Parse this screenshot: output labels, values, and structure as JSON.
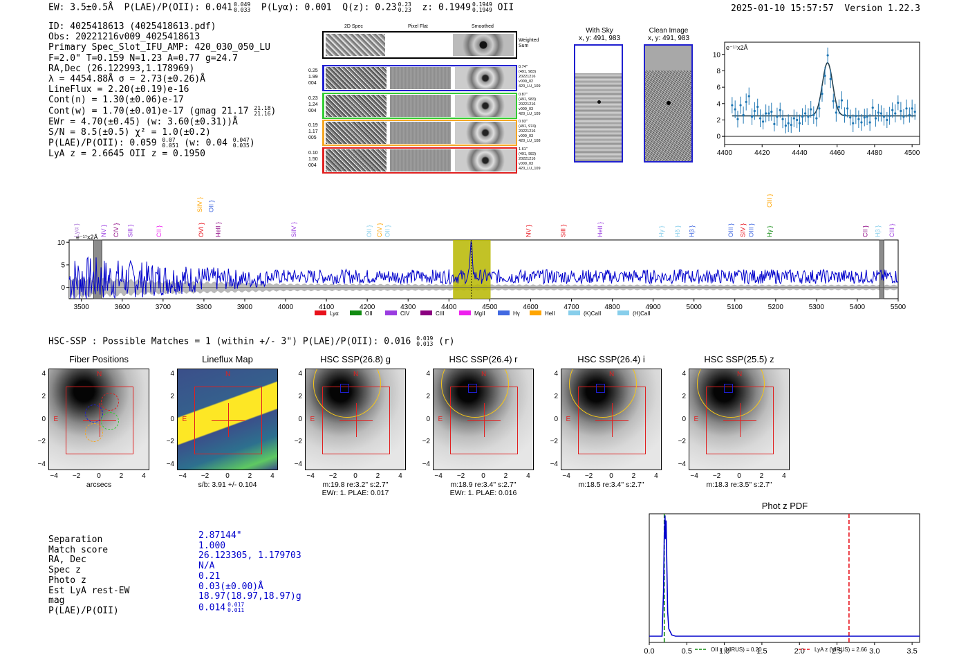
{
  "header": {
    "ew_label": "EW: 3.5±0.5Å",
    "plae_label": "P(LAE)/P(OII): 0.041",
    "plae_hi": "0.049",
    "plae_lo": "0.033",
    "plya_label": "P(Lyα): 0.001",
    "qz_label": "Q(z): 0.23",
    "qz_hi": "0.23",
    "qz_lo": "0.23",
    "z_label": "z: 0.1949",
    "z_hi": "0.1949",
    "z_lo": "0.1949",
    "line_name": "OII",
    "timestamp": "2025-01-10 15:57:57",
    "version": "Version 1.22.3"
  },
  "info": {
    "id": "ID: 4025418613 (4025418613.pdf)",
    "obs": "Obs: 20221216v009_4025418613",
    "primary": "Primary Spec_Slot_IFU_AMP: 420_030_050_LU",
    "fparams": "F=2.0\"  T=0.159  N=1.23  A=0.77  g=24.7",
    "radec": "RA,Dec (26.122993,1.178969)",
    "lambda_sigma": "λ = 4454.88Å  σ = 2.73(±0.26)Å",
    "lineflux": "LineFlux = 2.20(±0.19)e-16",
    "contn": "Cont(n) = 1.30(±0.06)e-17",
    "contw": "Cont(w) = 1.70(±0.01)e-17 (gmag 21.17",
    "contw_hi": "21.18",
    "contw_lo": "21.16",
    "contw_end": ")",
    "ewr": "EWr = 4.70(±0.45) (w: 3.60(±0.31))Å",
    "sn": "S/N = 8.5(±0.5)  χ² = 1.0(±0.2)",
    "plae": "P(LAE)/P(OII): 0.059",
    "plae_hi": "0.07",
    "plae_lo": "0.051",
    "plae_w": "(w: 0.04",
    "plae_w_hi": "0.047",
    "plae_w_lo": "0.035",
    "plae_w_end": ")",
    "lya_oii": "LyA z = 2.6645  OII z = 0.1950"
  },
  "cutouts": {
    "col_2d": "2D Spec",
    "col_flat": "Pixel Flat",
    "col_smooth": "Smoothed",
    "weighted_sum": "Weighted Sum",
    "rows": [
      {
        "left": [
          "0.25",
          "1.99",
          "004"
        ],
        "right": [
          "0.74\"",
          "(491, 983)",
          "20221216",
          "v009_02",
          "420_LU_109"
        ],
        "color": "#1f1fd0"
      },
      {
        "left": [
          "0.23",
          "1.24",
          "004"
        ],
        "right": [
          "0.87\"",
          "(491, 983)",
          "20221216",
          "v009_03",
          "420_LU_109"
        ],
        "color": "#33cc33"
      },
      {
        "left": [
          "0.19",
          "1.17",
          "005"
        ],
        "right": [
          "0.93\"",
          "(491, 974)",
          "20221216",
          "v009_03",
          "420_LU_108"
        ],
        "color": "#f5a623"
      },
      {
        "left": [
          "0.10",
          "1.50",
          "004"
        ],
        "right": [
          "1.61\"",
          "(491, 983)",
          "20221216",
          "v009_03",
          "420_LU_109"
        ],
        "color": "#e02020"
      }
    ]
  },
  "sky_panel": {
    "title": "With Sky",
    "coords": "x, y: 491, 983"
  },
  "clean_panel": {
    "title": "Clean Image",
    "coords": "x, y: 491, 983"
  },
  "hsc_header": {
    "text": "HSC-SSP : Possible Matches = 1 (within +/- 3\")  P(LAE)/P(OII): 0.016",
    "hi": "0.019",
    "lo": "0.013",
    "end": "(r)"
  },
  "thumbnails": [
    {
      "title": "Fiber Positions",
      "caption1": "arcsecs",
      "caption2": ""
    },
    {
      "title": "Lineflux Map",
      "caption1": "s/b: 3.91 +/- 0.104",
      "caption2": ""
    },
    {
      "title": "HSC SSP(26.8) g",
      "caption1": "m:19.8  re:3.2\"  s:2.7\"",
      "caption2": "EWr: 1. PLAE: 0.017"
    },
    {
      "title": "HSC SSP(26.4) r",
      "caption1": "m:18.9  re:3.4\"  s:2.7\"",
      "caption2": "EWr: 1. PLAE: 0.016"
    },
    {
      "title": "HSC SSP(26.4) i",
      "caption1": "m:18.5  re:3.4\"  s:2.7\"",
      "caption2": ""
    },
    {
      "title": "HSC SSP(25.5) z",
      "caption1": "m:18.3  re:3.5\"  s:2.7\"",
      "caption2": ""
    }
  ],
  "thumb_labels": {
    "north": "N",
    "east": "E"
  },
  "match_table": {
    "labels": [
      "Separation",
      "Match score",
      "RA, Dec",
      "Spec z",
      "Photo z",
      "Est LyA rest-EW",
      "mag",
      "P(LAE)/P(OII)"
    ],
    "values": [
      "2.87144\"",
      "1.000",
      "26.123305, 1.179703",
      "N/A",
      "0.21",
      "0.03(±0.00)Å",
      "18.97(18.97,18.97)g",
      "0.014"
    ],
    "plae_hi": "0.017",
    "plae_lo": "0.011"
  },
  "chart_data": [
    {
      "id": "line_fit",
      "type": "scatter",
      "title": "",
      "unit_label": "e⁻¹⁷x2Å",
      "xlim": [
        4400,
        4504
      ],
      "ylim": [
        -1,
        11.5
      ],
      "xticks": [
        4400,
        4420,
        4440,
        4460,
        4480,
        4500
      ],
      "yticks": [
        0,
        2,
        4,
        6,
        8,
        10
      ],
      "fit": {
        "continuum": 2.5,
        "center": 4454.9,
        "sigma": 2.73,
        "amp": 6.5
      },
      "points": [
        [
          4404,
          3.8
        ],
        [
          4405.6,
          3.3
        ],
        [
          4407,
          2.1
        ],
        [
          4408.5,
          3.8
        ],
        [
          4410,
          2.6
        ],
        [
          4411.5,
          4.2
        ],
        [
          4413,
          4.9
        ],
        [
          4414.6,
          2.4
        ],
        [
          4416,
          3.1
        ],
        [
          4417.6,
          3.6
        ],
        [
          4419,
          2.2
        ],
        [
          4420.5,
          1.8
        ],
        [
          4422,
          2.8
        ],
        [
          4423.6,
          2.8
        ],
        [
          4425,
          3.0
        ],
        [
          4426.5,
          1.5
        ],
        [
          4428,
          2.4
        ],
        [
          4429.6,
          3.2
        ],
        [
          4431,
          2.1
        ],
        [
          4432.6,
          1.3
        ],
        [
          4434,
          1.6
        ],
        [
          4435.5,
          1.4
        ],
        [
          4437,
          2.2
        ],
        [
          4438.6,
          2.0
        ],
        [
          4440,
          1.6
        ],
        [
          4441.5,
          2.4
        ],
        [
          4443,
          2.8
        ],
        [
          4444.6,
          2.4
        ],
        [
          4446,
          3.3
        ],
        [
          4447.5,
          2.6
        ],
        [
          4449,
          2.2
        ],
        [
          4450.5,
          3.4
        ],
        [
          4452,
          5.2
        ],
        [
          4453.5,
          7.4
        ],
        [
          4455,
          9.9
        ],
        [
          4456.5,
          7.0
        ],
        [
          4458,
          4.3
        ],
        [
          4459.5,
          2.9
        ],
        [
          4461,
          3.6
        ],
        [
          4462.5,
          4.4
        ],
        [
          4464,
          2.6
        ],
        [
          4465.5,
          3.4
        ],
        [
          4467,
          2.3
        ],
        [
          4468.5,
          1.6
        ],
        [
          4470,
          2.5
        ],
        [
          4471.5,
          2.1
        ],
        [
          4473,
          1.7
        ],
        [
          4474.6,
          2.3
        ],
        [
          4476,
          2.4
        ],
        [
          4477.5,
          1.7
        ],
        [
          4479,
          3.5
        ],
        [
          4480.6,
          2.2
        ],
        [
          4482,
          2.9
        ],
        [
          4483.5,
          2.8
        ],
        [
          4485,
          2.4
        ],
        [
          4486.6,
          2.0
        ],
        [
          4488,
          2.5
        ],
        [
          4489.5,
          3.2
        ],
        [
          4491,
          2.8
        ],
        [
          4492.5,
          4.1
        ],
        [
          4494,
          3.1
        ],
        [
          4495.5,
          2.4
        ],
        [
          4497,
          3.4
        ],
        [
          4498.6,
          2.6
        ],
        [
          4500,
          3.4
        ],
        [
          4501.5,
          3.0
        ]
      ]
    },
    {
      "id": "full_spectrum",
      "type": "line",
      "unit_label": "e⁻¹⁷x2Å",
      "xlim": [
        3470,
        5500
      ],
      "ylim": [
        -2.5,
        10.5
      ],
      "xticks": [
        3500,
        3600,
        3700,
        3800,
        3900,
        4000,
        4100,
        4200,
        4300,
        4400,
        4500,
        4600,
        4700,
        4800,
        4900,
        5000,
        5100,
        5200,
        5300,
        5400,
        5500
      ],
      "yticks": [
        0,
        5,
        10
      ],
      "highlight_range": [
        4410,
        4502
      ],
      "masked_regions": [
        [
          3530,
          3550
        ],
        [
          5455,
          5465
        ]
      ],
      "line_center": 4454.9,
      "noise_band": [
        [
          3470,
          2.0
        ],
        [
          3600,
          1.6
        ],
        [
          3700,
          1.2
        ],
        [
          3800,
          1.1
        ],
        [
          3900,
          0.9
        ],
        [
          4000,
          0.7
        ],
        [
          4500,
          0.55
        ],
        [
          5000,
          0.5
        ],
        [
          5500,
          0.5
        ]
      ],
      "legend": [
        {
          "name": "Lyα",
          "color": "#e8111b"
        },
        {
          "name": "OII",
          "color": "#118b11"
        },
        {
          "name": "CIV",
          "color": "#9a3ce0"
        },
        {
          "name": "CIII",
          "color": "#8b0080"
        },
        {
          "name": "MgII",
          "color": "#ee20ee"
        },
        {
          "name": "Hγ",
          "color": "#4169e1"
        },
        {
          "name": "HeII",
          "color": "#ffa500"
        },
        {
          "name": "(K)CaII",
          "color": "#87ceeb"
        },
        {
          "name": "(H)CaII",
          "color": "#87ceeb"
        }
      ],
      "line_markers": [
        {
          "name": "Lyα",
          "wave": 3488,
          "color": "#b07fd8",
          "row": 0
        },
        {
          "name": "NV",
          "wave": 3555,
          "color": "#9a3ce0",
          "row": 0
        },
        {
          "name": "CIV",
          "wave": 3585,
          "color": "#8b0080",
          "row": 0
        },
        {
          "name": "SiII",
          "wave": 3620,
          "color": "#9a3ce0",
          "row": 0
        },
        {
          "name": "CII",
          "wave": 3690,
          "color": "#ee20ee",
          "row": 0
        },
        {
          "name": "SiIV",
          "wave": 3790,
          "color": "#ffa500",
          "row": 1
        },
        {
          "name": "OII",
          "wave": 3818,
          "color": "#4169e1",
          "row": 1
        },
        {
          "name": "OVI",
          "wave": 3793,
          "color": "#e8111b",
          "row": 0
        },
        {
          "name": "HeII",
          "wave": 3835,
          "color": "#8b0080",
          "row": 0
        },
        {
          "name": "SiIV",
          "wave": 4020,
          "color": "#9a3ce0",
          "row": 0
        },
        {
          "name": "OII",
          "wave": 4205,
          "color": "#87ceeb",
          "row": 0
        },
        {
          "name": "CIV",
          "wave": 4230,
          "color": "#ffa500",
          "row": 0
        },
        {
          "name": "OII",
          "wave": 4250,
          "color": "#87ceeb",
          "row": 0
        },
        {
          "name": "NV",
          "wave": 4595,
          "color": "#e8111b",
          "row": 0
        },
        {
          "name": "SiII",
          "wave": 4680,
          "color": "#e8111b",
          "row": 0
        },
        {
          "name": "HeII",
          "wave": 4770,
          "color": "#9a3ce0",
          "row": 0
        },
        {
          "name": "Hγ",
          "wave": 4920,
          "color": "#87ceeb",
          "row": 0
        },
        {
          "name": "Hδ",
          "wave": 4960,
          "color": "#87ceeb",
          "row": 0
        },
        {
          "name": "Hβ",
          "wave": 4995,
          "color": "#4169e1",
          "row": 0
        },
        {
          "name": "OIII",
          "wave": 5090,
          "color": "#4169e1",
          "row": 0
        },
        {
          "name": "SIV",
          "wave": 5120,
          "color": "#e8111b",
          "row": 0
        },
        {
          "name": "OIII",
          "wave": 5140,
          "color": "#4169e1",
          "row": 0
        },
        {
          "name": "Hγ",
          "wave": 5185,
          "color": "#118b11",
          "row": 0
        },
        {
          "name": "CIII",
          "wave": 5185,
          "color": "#ffa500",
          "row": 2
        },
        {
          "name": "CII",
          "wave": 5420,
          "color": "#8b0080",
          "row": 0
        },
        {
          "name": "Hβ",
          "wave": 5450,
          "color": "#87ceeb",
          "row": 0
        },
        {
          "name": "CIII",
          "wave": 5485,
          "color": "#9a3ce0",
          "row": 0
        }
      ]
    },
    {
      "id": "thumbnail_axes",
      "type": "heatmap",
      "xlim": [
        -4.5,
        4.5
      ],
      "ylim": [
        -4.5,
        4.5
      ],
      "xticks": [
        -4,
        -2,
        0,
        2,
        4
      ],
      "yticks": [
        -4,
        -2,
        0,
        2,
        4
      ],
      "tick_labels": [
        "−4",
        "−2",
        "0",
        "2",
        "4"
      ]
    },
    {
      "id": "phot_z_pdf",
      "type": "line",
      "title": "Phot z PDF",
      "xlim": [
        0.0,
        3.6
      ],
      "ylim": [
        0,
        1.0
      ],
      "xticks": [
        0.0,
        0.5,
        1.0,
        1.5,
        2.0,
        2.5,
        3.0,
        3.5
      ],
      "tick_labels": [
        "0.0",
        "0.5",
        "1.0",
        "1.5",
        "2.0",
        "2.5",
        "3.0",
        "3.5"
      ],
      "pdf_peak_z": 0.21,
      "pdf_points": [
        [
          0.0,
          0.0
        ],
        [
          0.17,
          0.0
        ],
        [
          0.19,
          0.35
        ],
        [
          0.2,
          0.8
        ],
        [
          0.21,
          0.97
        ],
        [
          0.215,
          0.78
        ],
        [
          0.225,
          0.93
        ],
        [
          0.235,
          0.55
        ],
        [
          0.245,
          0.2
        ],
        [
          0.26,
          0.06
        ],
        [
          0.3,
          0.01
        ],
        [
          0.35,
          0.0
        ],
        [
          3.6,
          0.0
        ]
      ],
      "oii_z": 0.2,
      "lya_z": 2.66,
      "legend": [
        {
          "label": "OII z (VIRUS) = 0.20",
          "color": "#118b11"
        },
        {
          "label": "LyA z (VIRUS) = 2.66",
          "color": "#e8111b"
        }
      ]
    }
  ],
  "colors": {
    "accent_blue": "#0000cc",
    "fit_dark": "#25414f",
    "point_blue": "#1f77b4",
    "highlight": "#b7b700"
  }
}
